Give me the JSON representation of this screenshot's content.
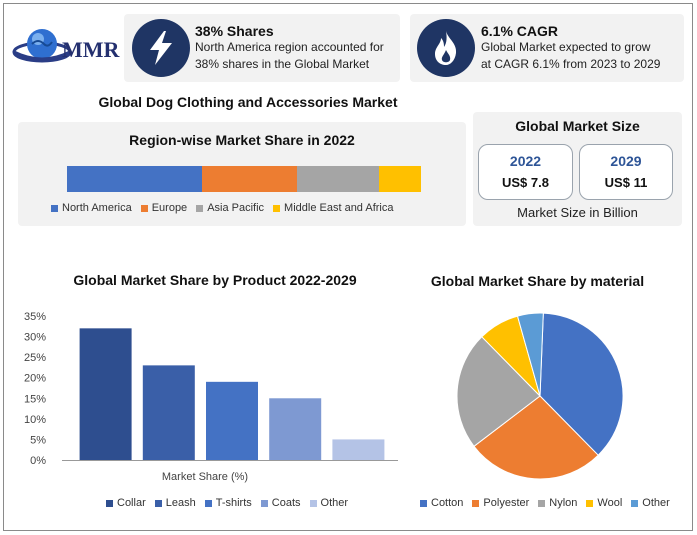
{
  "brand": {
    "name": "MMR"
  },
  "stats": [
    {
      "title": "38% Shares",
      "line1": "North America region accounted for",
      "line2": "38% shares in the Global Market",
      "icon": "lightning-icon"
    },
    {
      "title": "6.1% CAGR",
      "line1": "Global Market expected to grow",
      "line2": "at CAGR 6.1% from 2023 to 2029",
      "icon": "flame-icon"
    }
  ],
  "main_title": "Global Dog Clothing and Accessories Market",
  "region_section": {
    "title": "Region-wise Market Share in 2022",
    "items": [
      {
        "label": "North America",
        "share": 38,
        "color": "#4472c4"
      },
      {
        "label": "Europe",
        "share": 27,
        "color": "#ed7d31"
      },
      {
        "label": "Asia Pacific",
        "share": 23,
        "color": "#a5a5a5"
      },
      {
        "label": "Middle East and Africa",
        "share": 12,
        "color": "#ffc000"
      }
    ]
  },
  "market_size": {
    "title": "Global Market Size",
    "boxes": [
      {
        "year": "2022",
        "value": "US$ 7.8"
      },
      {
        "year": "2029",
        "value": "US$ 11"
      }
    ],
    "caption": "Market Size in Billion"
  },
  "chart_data": [
    {
      "type": "bar",
      "title": "Global Market Share by Product 2022-2029",
      "xlabel": "Market Share (%)",
      "ylabel": "",
      "categories": [
        "Collar",
        "Leash",
        "T-shirts",
        "Coats",
        "Other"
      ],
      "values": [
        32,
        23,
        19,
        15,
        5
      ],
      "colors": [
        "#2e4e8f",
        "#3a5fa8",
        "#4472c4",
        "#7e99d2",
        "#b4c3e6"
      ],
      "yticks": [
        "0%",
        "5%",
        "10%",
        "15%",
        "20%",
        "25%",
        "30%",
        "35%"
      ],
      "ylim": [
        0,
        35
      ],
      "grid": false,
      "legend": "bottom"
    },
    {
      "type": "pie",
      "title": "Global Market Share by material",
      "labels": [
        "Cotton",
        "Polyester",
        "Nylon",
        "Wool",
        "Other"
      ],
      "values": [
        37,
        27,
        23,
        8,
        5
      ],
      "colors": [
        "#4472c4",
        "#ed7d31",
        "#a5a5a5",
        "#ffc000",
        "#5b9bd5"
      ],
      "legend": "bottom"
    }
  ]
}
